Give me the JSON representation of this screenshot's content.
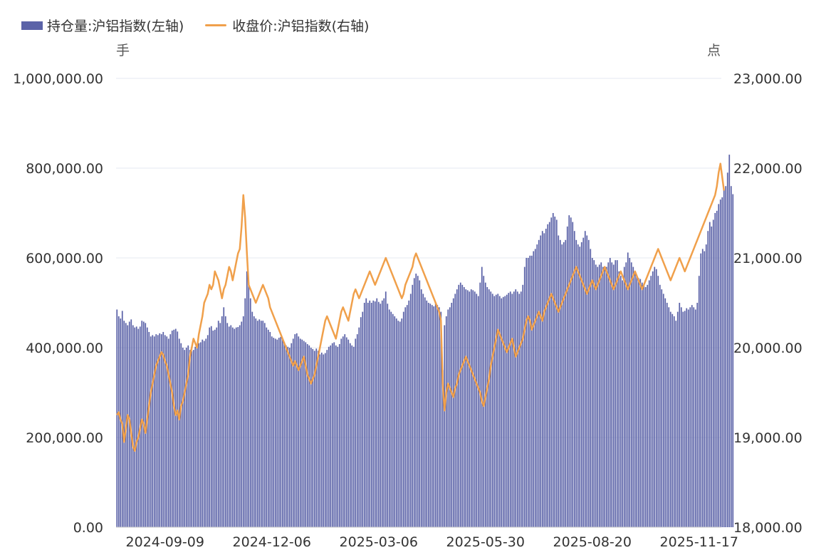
{
  "legend": {
    "bar_label": "持仓量:沪铝指数(左轴)",
    "line_label": "收盘价:沪铝指数(右轴)"
  },
  "units": {
    "left": "手",
    "right": "点"
  },
  "colors": {
    "bar": "#5b63a8",
    "line": "#f0a04b",
    "grid": "#e6e8f0",
    "axis_text": "#333333"
  },
  "chart_data": {
    "type": "bar+line",
    "y_left": {
      "ticks": [
        "0.00",
        "200,000.00",
        "400,000.00",
        "600,000.00",
        "800,000.00",
        "1,000,000.00"
      ],
      "range": [
        0,
        1000000
      ]
    },
    "y_right": {
      "ticks": [
        "18,000.00",
        "19,000.00",
        "20,000.00",
        "21,000.00",
        "22,000.00",
        "23,000.00"
      ],
      "range": [
        18000,
        23000
      ]
    },
    "x_ticks": [
      "2024-09-09",
      "2024-12-06",
      "2025-03-06",
      "2025-05-30",
      "2025-08-20",
      "2025-11-17"
    ],
    "x_tick_index": [
      27,
      87,
      147,
      207,
      267,
      327
    ],
    "n_points": 340,
    "series": [
      {
        "name": "持仓量:沪铝指数(左轴)",
        "kind": "bar",
        "axis": "left",
        "values": [
          485000,
          470000,
          465000,
          482000,
          460000,
          455000,
          450000,
          458000,
          463000,
          450000,
          445000,
          447000,
          442000,
          447000,
          460000,
          458000,
          455000,
          445000,
          435000,
          425000,
          428000,
          425000,
          430000,
          428000,
          432000,
          430000,
          435000,
          428000,
          425000,
          420000,
          430000,
          438000,
          440000,
          442000,
          436000,
          420000,
          410000,
          400000,
          395000,
          400000,
          405000,
          395000,
          392000,
          395000,
          402000,
          405000,
          410000,
          412000,
          418000,
          415000,
          420000,
          428000,
          445000,
          448000,
          438000,
          440000,
          445000,
          460000,
          455000,
          470000,
          490000,
          470000,
          455000,
          447000,
          450000,
          445000,
          442000,
          445000,
          446000,
          450000,
          458000,
          470000,
          510000,
          570000,
          545000,
          510000,
          480000,
          470000,
          465000,
          460000,
          463000,
          460000,
          460000,
          455000,
          445000,
          440000,
          435000,
          425000,
          422000,
          420000,
          418000,
          422000,
          424000,
          418000,
          412000,
          405000,
          402000,
          400000,
          410000,
          420000,
          430000,
          432000,
          425000,
          420000,
          418000,
          415000,
          412000,
          408000,
          405000,
          400000,
          397000,
          393000,
          398000,
          393000,
          385000,
          389000,
          385000,
          388000,
          395000,
          402000,
          405000,
          410000,
          412000,
          405000,
          402000,
          408000,
          420000,
          425000,
          430000,
          423000,
          418000,
          410000,
          405000,
          402000,
          420000,
          430000,
          445000,
          468000,
          480000,
          500000,
          510000,
          500000,
          505000,
          500000,
          505000,
          503000,
          510000,
          502000,
          498000,
          505000,
          510000,
          525000,
          498000,
          485000,
          480000,
          475000,
          470000,
          465000,
          460000,
          458000,
          465000,
          480000,
          490000,
          495000,
          505000,
          520000,
          540000,
          555000,
          565000,
          560000,
          550000,
          530000,
          520000,
          512000,
          505000,
          500000,
          498000,
          495000,
          492000,
          500000,
          495000,
          490000,
          480000,
          350000,
          450000,
          470000,
          485000,
          490000,
          500000,
          510000,
          520000,
          530000,
          540000,
          545000,
          540000,
          535000,
          530000,
          528000,
          525000,
          530000,
          528000,
          525000,
          520000,
          515000,
          545000,
          580000,
          560000,
          545000,
          535000,
          530000,
          525000,
          520000,
          515000,
          518000,
          520000,
          515000,
          510000,
          513000,
          515000,
          518000,
          522000,
          525000,
          520000,
          525000,
          530000,
          525000,
          520000,
          525000,
          540000,
          580000,
          600000,
          600000,
          605000,
          605000,
          615000,
          620000,
          630000,
          640000,
          650000,
          660000,
          655000,
          665000,
          675000,
          680000,
          690000,
          700000,
          692000,
          685000,
          650000,
          640000,
          630000,
          635000,
          640000,
          670000,
          695000,
          690000,
          680000,
          660000,
          640000,
          630000,
          625000,
          635000,
          645000,
          660000,
          650000,
          640000,
          620000,
          600000,
          595000,
          585000,
          580000,
          585000,
          590000,
          580000,
          575000,
          580000,
          590000,
          600000,
          590000,
          585000,
          595000,
          595000,
          570000,
          560000,
          550000,
          580000,
          590000,
          612000,
          600000,
          590000,
          580000,
          570000,
          560000,
          555000,
          553000,
          545000,
          540000,
          535000,
          540000,
          550000,
          560000,
          570000,
          580000,
          575000,
          560000,
          540000,
          530000,
          520000,
          510000,
          500000,
          490000,
          480000,
          475000,
          470000,
          460000,
          480000,
          500000,
          490000,
          480000,
          482000,
          488000,
          485000,
          490000,
          495000,
          490000,
          485000,
          500000,
          560000,
          610000,
          620000,
          615000,
          630000,
          660000,
          680000,
          670000,
          685000,
          700000,
          705000,
          720000,
          730000,
          735000,
          750000,
          760000,
          790000,
          830000,
          760000,
          742000
        ]
      },
      {
        "name": "收盘价:沪铝指数(右轴)",
        "kind": "line",
        "axis": "right",
        "values": [
          19250,
          19280,
          19200,
          19150,
          18950,
          19100,
          19250,
          19200,
          19050,
          18900,
          18850,
          18950,
          19000,
          19100,
          19200,
          19150,
          19050,
          19200,
          19350,
          19500,
          19600,
          19700,
          19800,
          19850,
          19900,
          19950,
          19920,
          19850,
          19800,
          19700,
          19600,
          19500,
          19350,
          19250,
          19300,
          19200,
          19350,
          19400,
          19500,
          19600,
          19700,
          19900,
          20000,
          20100,
          20050,
          20000,
          20150,
          20250,
          20350,
          20500,
          20550,
          20600,
          20700,
          20650,
          20700,
          20850,
          20800,
          20750,
          20650,
          20550,
          20650,
          20700,
          20800,
          20900,
          20850,
          20750,
          20850,
          20950,
          21050,
          21100,
          21350,
          21700,
          21450,
          21050,
          20700,
          20650,
          20600,
          20550,
          20500,
          20550,
          20600,
          20650,
          20700,
          20650,
          20600,
          20550,
          20450,
          20400,
          20350,
          20300,
          20250,
          20200,
          20150,
          20100,
          20050,
          20000,
          19950,
          19900,
          19850,
          19800,
          19850,
          19800,
          19750,
          19800,
          19850,
          19900,
          19800,
          19700,
          19650,
          19600,
          19650,
          19700,
          19800,
          19900,
          20000,
          20100,
          20200,
          20300,
          20350,
          20300,
          20250,
          20200,
          20150,
          20100,
          20200,
          20300,
          20400,
          20450,
          20400,
          20350,
          20300,
          20400,
          20500,
          20600,
          20650,
          20600,
          20550,
          20600,
          20650,
          20700,
          20750,
          20800,
          20850,
          20800,
          20750,
          20700,
          20750,
          20800,
          20850,
          20900,
          20950,
          21000,
          20950,
          20900,
          20850,
          20800,
          20750,
          20700,
          20650,
          20600,
          20550,
          20600,
          20700,
          20750,
          20800,
          20850,
          20900,
          21000,
          21050,
          21000,
          20950,
          20900,
          20850,
          20800,
          20750,
          20700,
          20650,
          20600,
          20550,
          20500,
          20450,
          20400,
          20300,
          19600,
          19300,
          19500,
          19600,
          19550,
          19500,
          19450,
          19550,
          19600,
          19700,
          19750,
          19800,
          19850,
          19900,
          19850,
          19800,
          19750,
          19700,
          19650,
          19600,
          19550,
          19500,
          19400,
          19350,
          19450,
          19550,
          19650,
          19800,
          19900,
          20000,
          20100,
          20200,
          20150,
          20100,
          20050,
          20000,
          19950,
          20000,
          20050,
          20100,
          20000,
          19900,
          19950,
          20000,
          20050,
          20100,
          20200,
          20300,
          20350,
          20300,
          20200,
          20250,
          20300,
          20350,
          20400,
          20350,
          20300,
          20400,
          20450,
          20500,
          20550,
          20600,
          20550,
          20500,
          20450,
          20400,
          20450,
          20500,
          20550,
          20600,
          20650,
          20700,
          20750,
          20800,
          20850,
          20900,
          20850,
          20800,
          20750,
          20700,
          20650,
          20600,
          20650,
          20700,
          20750,
          20700,
          20650,
          20700,
          20750,
          20800,
          20850,
          20900,
          20850,
          20800,
          20750,
          20700,
          20650,
          20700,
          20750,
          20800,
          20850,
          20800,
          20750,
          20700,
          20650,
          20700,
          20750,
          20800,
          20850,
          20800,
          20750,
          20700,
          20650,
          20700,
          20750,
          20800,
          20850,
          20900,
          20950,
          21000,
          21050,
          21100,
          21050,
          21000,
          20950,
          20900,
          20850,
          20800,
          20750,
          20800,
          20850,
          20900,
          20950,
          21000,
          20950,
          20900,
          20850,
          20900,
          20950,
          21000,
          21050,
          21100,
          21150,
          21200,
          21250,
          21300,
          21350,
          21400,
          21450,
          21500,
          21550,
          21600,
          21650,
          21700,
          21800,
          21950,
          22050,
          21900,
          21750
        ]
      }
    ]
  }
}
